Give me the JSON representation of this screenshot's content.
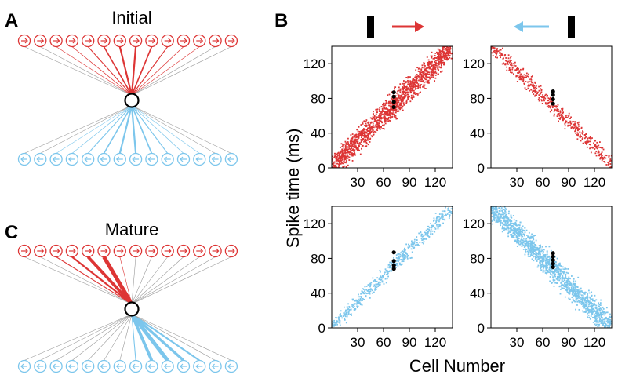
{
  "panels": {
    "A": {
      "letter": "A",
      "title": "Initial"
    },
    "B": {
      "letter": "B"
    },
    "C": {
      "letter": "C",
      "title": "Mature"
    }
  },
  "colors": {
    "red": "#dd3535",
    "blue": "#7cc6ec",
    "gray": "#9a9a9a",
    "black": "#000000"
  },
  "network": {
    "n_inputs_per_row": 14,
    "input_row_icons": {
      "top": "right-arrow-circle-icon",
      "bottom": "left-arrow-circle-icon"
    },
    "initial_weights": {
      "top": [
        0.2,
        0.3,
        0.5,
        0.7,
        1.0,
        1.5,
        2.0,
        2.0,
        1.5,
        1.0,
        0.7,
        0.5,
        0.3,
        0.2
      ],
      "bottom": [
        0.2,
        0.3,
        0.5,
        0.7,
        1.0,
        1.5,
        2.0,
        2.0,
        1.5,
        1.0,
        0.7,
        0.5,
        0.3,
        0.2
      ]
    },
    "mature_weights": {
      "top": [
        0.1,
        0.3,
        1.0,
        2.0,
        3.5,
        4.5,
        0.5,
        0.1,
        0.1,
        0.1,
        0.1,
        0.1,
        0.1,
        0.1
      ],
      "bottom": [
        0.1,
        0.1,
        0.1,
        0.1,
        0.1,
        0.1,
        0.1,
        1.0,
        3.5,
        4.5,
        3.0,
        2.0,
        0.3,
        0.1
      ]
    }
  },
  "stimuli": {
    "left": {
      "bar": "bar-icon",
      "arrow": "right-arrow-icon",
      "arrow_color": "red"
    },
    "right": {
      "bar": "bar-icon",
      "arrow": "left-arrow-icon",
      "arrow_color": "blue"
    }
  },
  "chart_data": [
    {
      "type": "scatter",
      "position": "top-left",
      "series": [
        {
          "color": "red",
          "direction": "increasing",
          "x_range": [
            0,
            140
          ],
          "y_range": [
            0,
            140
          ],
          "density": "high",
          "spread_ms": 22
        }
      ],
      "reference_cell": 72,
      "reference_spike_times": [
        70,
        76,
        82,
        87
      ],
      "xlim": [
        0,
        140
      ],
      "ylim": [
        0,
        140
      ],
      "xticks": [
        30,
        60,
        90,
        120
      ],
      "yticks": [
        0,
        40,
        80,
        120
      ]
    },
    {
      "type": "scatter",
      "position": "top-right",
      "series": [
        {
          "color": "red",
          "direction": "decreasing",
          "x_range": [
            0,
            140
          ],
          "y_range": [
            140,
            5
          ],
          "density": "low",
          "spread_ms": 14
        }
      ],
      "reference_cell": 72,
      "reference_spike_times": [
        74,
        79,
        84,
        88
      ],
      "xlim": [
        0,
        140
      ],
      "ylim": [
        0,
        140
      ],
      "xticks": [
        30,
        60,
        90,
        120
      ],
      "yticks": [
        0,
        40,
        80,
        120
      ]
    },
    {
      "type": "scatter",
      "position": "bottom-left",
      "series": [
        {
          "color": "blue",
          "direction": "increasing",
          "x_range": [
            0,
            140
          ],
          "y_range": [
            0,
            140
          ],
          "density": "low",
          "spread_ms": 14
        }
      ],
      "reference_cell": 72,
      "reference_spike_times": [
        68,
        72,
        77,
        87
      ],
      "xlim": [
        0,
        140
      ],
      "ylim": [
        0,
        140
      ],
      "xticks": [
        30,
        60,
        90,
        120
      ],
      "yticks": [
        0,
        40,
        80,
        120
      ]
    },
    {
      "type": "scatter",
      "position": "bottom-right",
      "series": [
        {
          "color": "blue",
          "direction": "decreasing",
          "x_range": [
            0,
            140
          ],
          "y_range": [
            140,
            0
          ],
          "density": "high",
          "spread_ms": 22
        }
      ],
      "reference_cell": 72,
      "reference_spike_times": [
        70,
        74,
        78,
        82,
        86
      ],
      "xlim": [
        0,
        140
      ],
      "ylim": [
        0,
        140
      ],
      "xticks": [
        30,
        60,
        90,
        120
      ],
      "yticks": [
        0,
        40,
        80,
        120
      ]
    }
  ],
  "axes": {
    "ylabel": "Spike time (ms)",
    "xlabel": "Cell Number"
  }
}
